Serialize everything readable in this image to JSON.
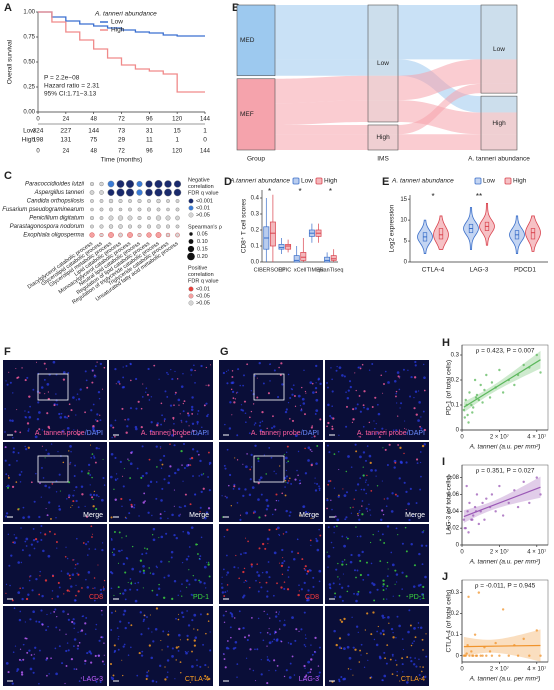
{
  "panel_labels": [
    "A",
    "B",
    "C",
    "D",
    "E",
    "F",
    "G",
    "H",
    "I",
    "J"
  ],
  "chart_data": [
    {
      "type": "survival",
      "ylabel": "Overall survival",
      "xlabel": "Time (months)",
      "xlim": [
        0,
        144
      ],
      "ylim": [
        0,
        1
      ],
      "xticks": [
        0,
        24,
        48,
        72,
        96,
        120,
        144
      ],
      "yticks": [
        {
          "value": 0,
          "label": "0.00"
        },
        {
          "value": 0.25,
          "label": "0.25"
        },
        {
          "value": 0.5,
          "label": "0.50"
        },
        {
          "value": 0.75,
          "label": "0.75"
        },
        {
          "value": 1,
          "label": "1.00"
        }
      ],
      "legend_title": "A. tanneri abundance",
      "x": [
        0,
        12,
        24,
        36,
        48,
        60,
        72,
        84,
        96,
        108,
        120,
        144
      ],
      "series": [
        {
          "name": "Low",
          "color": "#3a6fd0",
          "values": [
            1,
            0.95,
            0.91,
            0.88,
            0.86,
            0.84,
            0.82,
            0.8,
            0.79,
            0.77,
            0.76,
            0.76
          ]
        },
        {
          "name": "High",
          "color": "#f08a8a",
          "values": [
            1,
            0.9,
            0.8,
            0.72,
            0.63,
            0.54,
            0.47,
            0.43,
            0.41,
            0.38,
            0.2,
            0.2
          ]
        }
      ],
      "annotations": [
        "P = 2.2e−08",
        "Hazard ratio = 2.31",
        "95% CI:1.71−3.13"
      ],
      "risk_table": [
        [
          324,
          227,
          144,
          73,
          31,
          15,
          1
        ],
        [
          198,
          131,
          75,
          29,
          11,
          1,
          0
        ]
      ]
    },
    {
      "type": "sankey",
      "columns": [
        {
          "name": "Group",
          "nodes": [
            "MED",
            "MEF"
          ],
          "colors": [
            "#9dc9ef",
            "#f5a3ac"
          ]
        },
        {
          "name": "IMS",
          "nodes": [
            "Low",
            "High"
          ]
        },
        {
          "name": "A. tanneri abundance",
          "nodes": [
            "Low",
            "High"
          ]
        }
      ],
      "flows": [
        {
          "path": [
            "MED",
            "Low",
            "Low"
          ],
          "value": 200
        },
        {
          "path": [
            "MED",
            "Low",
            "High"
          ],
          "value": 60
        },
        {
          "path": [
            "MEF",
            "Low",
            "Low"
          ],
          "value": 90
        },
        {
          "path": [
            "MEF",
            "Low",
            "High"
          ],
          "value": 80
        },
        {
          "path": [
            "MEF",
            "High",
            "Low"
          ],
          "value": 34
        },
        {
          "path": [
            "MEF",
            "High",
            "High"
          ],
          "value": 58
        }
      ]
    },
    {
      "type": "dot_matrix",
      "rows": [
        "Paracoccidioides lutzii",
        "Aspergillus tanneri",
        "Candida orthopsilosis",
        "Fusarium pseudograminearum",
        "Penicillium digitatum",
        "Parastagonospora nodorum",
        "Exophiala oligosperma"
      ],
      "columns": [
        "Diacylglycerol catabolic process",
        "Glycerolipid catabolic process",
        "Glycerolipid metabolic process",
        "Lipid catabolic process",
        "Monoacylglycerol catabolic process",
        "Neutral lipid catabolic process",
        "Regulation of lipid catabolic process",
        "Regulation of triglyceride catabolic process",
        "Triglyceride catabolic process",
        "Unsaturated fatty acid metabolic process"
      ],
      "rho": [
        [
          -0.06,
          -0.07,
          -0.15,
          -0.19,
          -0.2,
          -0.13,
          -0.17,
          -0.2,
          -0.18,
          -0.17
        ],
        [
          -0.08,
          -0.08,
          -0.16,
          -0.2,
          -0.2,
          -0.14,
          -0.18,
          -0.2,
          -0.19,
          -0.18
        ],
        [
          -0.05,
          -0.05,
          -0.07,
          -0.06,
          -0.05,
          -0.06,
          -0.05,
          -0.07,
          -0.05,
          -0.05
        ],
        [
          -0.04,
          -0.05,
          -0.05,
          -0.04,
          -0.05,
          -0.05,
          -0.06,
          -0.05,
          -0.04,
          -0.05
        ],
        [
          -0.06,
          -0.05,
          -0.09,
          -0.1,
          -0.09,
          -0.06,
          -0.05,
          -0.1,
          -0.09,
          -0.08
        ],
        [
          -0.05,
          -0.06,
          -0.07,
          -0.08,
          -0.06,
          -0.05,
          -0.06,
          -0.07,
          -0.06,
          -0.05
        ],
        [
          0.1,
          0.06,
          0.12,
          0.08,
          0.12,
          0.06,
          0.1,
          0.12,
          0.07,
          0.08
        ]
      ],
      "q": [
        [
          ">0.05",
          ">0.05",
          "<0.01",
          "<0.001",
          "<0.001",
          "<0.01",
          "<0.001",
          "<0.001",
          "<0.001",
          "<0.001"
        ],
        [
          ">0.05",
          ">0.05",
          "<0.001",
          "<0.001",
          "<0.001",
          "<0.01",
          "<0.001",
          "<0.001",
          "<0.001",
          "<0.001"
        ],
        [
          ">0.05",
          ">0.05",
          ">0.05",
          ">0.05",
          ">0.05",
          ">0.05",
          ">0.05",
          ">0.05",
          ">0.05",
          ">0.05"
        ],
        [
          ">0.05",
          ">0.05",
          ">0.05",
          ">0.05",
          ">0.05",
          ">0.05",
          ">0.05",
          ">0.05",
          ">0.05",
          ">0.05"
        ],
        [
          ">0.05",
          ">0.05",
          ">0.05",
          ">0.05",
          ">0.05",
          ">0.05",
          ">0.05",
          ">0.05",
          ">0.05",
          ">0.05"
        ],
        [
          ">0.05",
          ">0.05",
          ">0.05",
          ">0.05",
          ">0.05",
          ">0.05",
          ">0.05",
          ">0.05",
          ">0.05",
          ">0.05"
        ],
        [
          "<0.05",
          ">0.05",
          "<0.05",
          ">0.05",
          "<0.05",
          ">0.05",
          "<0.05",
          "<0.05",
          ">0.05",
          ">0.05"
        ]
      ],
      "legend": {
        "negative": {
          "title": [
            "Negative",
            "correlation",
            "FDR q value"
          ],
          "labels": [
            "<0.001",
            "<0.01",
            ">0.05"
          ],
          "colors": [
            "#1a2a6c",
            "#3a7bd5",
            "#d4d4d4"
          ]
        },
        "size": {
          "title": "Spearman's ρ",
          "values": [
            0.05,
            {
              "value": 0.1,
              "label": "0.10"
            },
            0.15,
            {
              "value": 0.2,
              "label": "0.20"
            }
          ]
        },
        "positive": {
          "title": [
            "Positive",
            "correlation",
            "FDR q value"
          ],
          "labels": [
            "<0.01",
            "<0.05",
            ">0.05"
          ],
          "colors": [
            "#e8413c",
            "#f4a0a0",
            "#d4d4d4"
          ]
        }
      }
    },
    {
      "type": "box",
      "title": "A.tanneri abundance",
      "ylabel": "CD8⁺ T cell scores",
      "categories": [
        "CIBERSORT",
        "EPIC",
        "xCell",
        "TIMER",
        "quanTIseq"
      ],
      "ylim": [
        0,
        0.45
      ],
      "yticks": [
        {
          "value": 0,
          "label": "0.0"
        },
        0.1,
        0.2,
        0.3,
        0.4
      ],
      "series": [
        {
          "name": "Low",
          "color": "#3b6fc9",
          "fill": "#b9cdef",
          "boxes": [
            [
              0,
              0.08,
              0.15,
              0.22,
              0.4
            ],
            [
              0.05,
              0.08,
              0.09,
              0.11,
              0.15
            ],
            [
              0,
              0,
              0.01,
              0.04,
              0.1
            ],
            [
              0.12,
              0.16,
              0.18,
              0.2,
              0.24
            ],
            [
              0,
              0,
              0.01,
              0.03,
              0.06
            ]
          ]
        },
        {
          "name": "High",
          "color": "#d9434e",
          "fill": "#f4b8bc",
          "boxes": [
            [
              0,
              0.1,
              0.18,
              0.25,
              0.42
            ],
            [
              0.06,
              0.08,
              0.1,
              0.11,
              0.14
            ],
            [
              0,
              0.01,
              0.03,
              0.06,
              0.15
            ],
            [
              0.12,
              0.16,
              0.18,
              0.2,
              0.24
            ],
            [
              0,
              0.01,
              0.02,
              0.04,
              0.08
            ]
          ]
        }
      ],
      "significance": [
        "*",
        null,
        "*",
        null,
        "*"
      ]
    },
    {
      "type": "violin",
      "title": "A. tanneri abundance",
      "ylabel": "Log2 expression",
      "categories": [
        "CTLA-4",
        "LAG-3",
        "PDCD1"
      ],
      "ylim": [
        0,
        16
      ],
      "yticks": [
        0,
        5,
        10,
        15
      ],
      "series": [
        {
          "name": "Low",
          "color": "#3b6fc9",
          "fill": "#c4d5f2",
          "boxes": [
            [
              2,
              5,
              6,
              7,
              10
            ],
            [
              3,
              7,
              8,
              9,
              13
            ],
            [
              2,
              5.5,
              6.5,
              7.5,
              11
            ]
          ]
        },
        {
          "name": "High",
          "color": "#d9434e",
          "fill": "#f6c1c5",
          "boxes": [
            [
              3,
              5.5,
              6.5,
              8,
              11
            ],
            [
              4,
              7.5,
              8.5,
              9.5,
              14
            ],
            [
              2.5,
              5.5,
              7,
              8,
              11
            ]
          ]
        }
      ],
      "significance": [
        "*",
        "**",
        null
      ]
    },
    {
      "type": "scatter",
      "annotation": "ρ = 0.423, P = 0.007",
      "ylabel": "PD-1 (of total cells)",
      "xlabel": "A. tanneri (a.u. per mm²)",
      "color": "#5cb85c",
      "xlim": [
        0,
        46000000
      ],
      "xticks": [
        0,
        {
          "value": 20000000,
          "label": "2 × 10⁷"
        },
        {
          "value": 40000000,
          "label": "4 × 10⁷"
        }
      ],
      "ylim": [
        0,
        0.34
      ],
      "yticks": [
        0,
        0.1,
        0.2,
        0.3
      ],
      "x": [
        1000000.0,
        2000000.0,
        3000000.0,
        4000000.0,
        5000000.0,
        6000000.0,
        7000000.0,
        8000000.0,
        9000000.0,
        10000000.0,
        11000000.0,
        12000000.0,
        13000000.0,
        15000000.0,
        16000000.0,
        18000000.0,
        20000000.0,
        22000000.0,
        25000000.0,
        28000000.0,
        30000000.0,
        33000000.0,
        36000000.0,
        40000000.0,
        42000000.0,
        1500000.0,
        3500000.0,
        5500000.0,
        2500000.0,
        7500000.0
      ],
      "values": [
        0.08,
        0.12,
        0.06,
        0.15,
        0.1,
        0.09,
        0.2,
        0.14,
        0.12,
        0.18,
        0.11,
        0.16,
        0.22,
        0.13,
        0.19,
        0.17,
        0.24,
        0.15,
        0.2,
        0.18,
        0.22,
        0.26,
        0.25,
        0.3,
        0.23,
        0.05,
        0.03,
        0.07,
        0.1,
        0.13
      ]
    },
    {
      "type": "scatter",
      "annotation": "ρ = 0.351, P = 0.027",
      "ylabel": "LAG-3 (of total cells)",
      "xlabel": "A. tanneri (a.u. per mm²)",
      "color": "#9b59b6",
      "xlim": [
        0,
        46000000
      ],
      "xticks": [
        0,
        {
          "value": 20000000,
          "label": "2 × 10⁷"
        },
        {
          "value": 40000000,
          "label": "4 × 10⁷"
        }
      ],
      "ylim": [
        0,
        0.095
      ],
      "yticks": [
        0,
        0.02,
        0.04,
        0.06,
        0.08
      ],
      "x": [
        1000000.0,
        2000000.0,
        3000000.0,
        4000000.0,
        5000000.0,
        6000000.0,
        7000000.0,
        8000000.0,
        9000000.0,
        10000000.0,
        11000000.0,
        12000000.0,
        13000000.0,
        15000000.0,
        16000000.0,
        18000000.0,
        20000000.0,
        22000000.0,
        25000000.0,
        28000000.0,
        30000000.0,
        33000000.0,
        36000000.0,
        40000000.0,
        42000000.0,
        1500000.0,
        3500000.0,
        5500000.0,
        2500000.0,
        7500000.0
      ],
      "values": [
        0.03,
        0.02,
        0.04,
        0.05,
        0.03,
        0.035,
        0.045,
        0.06,
        0.025,
        0.04,
        0.05,
        0.03,
        0.055,
        0.045,
        0.06,
        0.04,
        0.07,
        0.035,
        0.05,
        0.065,
        0.045,
        0.075,
        0.05,
        0.08,
        0.06,
        0.02,
        0.015,
        0.03,
        0.07,
        0.04
      ]
    },
    {
      "type": "scatter",
      "annotation": "ρ = -0.011, P = 0.945",
      "ylabel": "CTLA-4 (of total cells)",
      "xlabel": "A. tanneri (a.u. per mm²)",
      "color": "#f0932b",
      "xlim": [
        0,
        46000000
      ],
      "xticks": [
        0,
        {
          "value": 20000000,
          "label": "2 × 10⁷"
        },
        {
          "value": 40000000,
          "label": "4 × 10⁷"
        }
      ],
      "ylim": [
        -0.03,
        0.36
      ],
      "yticks": [
        0,
        0.1,
        0.2,
        0.3
      ],
      "x": [
        1000000.0,
        2000000.0,
        3000000.0,
        4000000.0,
        5000000.0,
        6000000.0,
        7000000.0,
        8000000.0,
        9000000.0,
        10000000.0,
        11000000.0,
        12000000.0,
        13000000.0,
        15000000.0,
        16000000.0,
        18000000.0,
        20000000.0,
        22000000.0,
        25000000.0,
        28000000.0,
        30000000.0,
        33000000.0,
        36000000.0,
        40000000.0,
        42000000.0,
        1500000.0,
        3500000.0,
        5500000.0,
        2500000.0,
        7500000.0
      ],
      "values": [
        0,
        0,
        0.05,
        0,
        0.02,
        0,
        0.1,
        0,
        0.3,
        0,
        0,
        0.04,
        0,
        0.02,
        0,
        0.06,
        0,
        0.22,
        0,
        0.05,
        0,
        0.08,
        0,
        0.12,
        0,
        0,
        0.28,
        0,
        0.01,
        0
      ]
    }
  ],
  "microscopy": [
    {
      "cells": [
        {
          "label": [
            {
              "text": "A. tanneri probe",
              "color": "#ff5fa0"
            },
            {
              "text": "/DAPI",
              "color": "#6b8bff"
            }
          ]
        },
        {
          "label": [
            {
              "text": "A. tanneri probe",
              "color": "#ff5fa0"
            },
            {
              "text": "/DAPI",
              "color": "#6b8bff"
            }
          ]
        },
        {
          "label": [
            {
              "text": "Merge",
              "color": "#ffffff"
            }
          ]
        },
        {
          "label": [
            {
              "text": "Merge",
              "color": "#ffffff"
            }
          ]
        },
        {
          "label": [
            {
              "text": "CD8",
              "color": "#ff3b3b"
            }
          ]
        },
        {
          "label": [
            {
              "text": "PD-1",
              "color": "#3ddc3d"
            }
          ]
        },
        {
          "label": [
            {
              "text": "LAG-3",
              "color": "#c060ff"
            }
          ]
        },
        {
          "label": [
            {
              "text": "CTLA-4",
              "color": "#ffa020"
            }
          ]
        }
      ]
    },
    {
      "cells": [
        {
          "label": [
            {
              "text": "A. tanneri probe",
              "color": "#ff5fa0"
            },
            {
              "text": "/DAPI",
              "color": "#6b8bff"
            }
          ]
        },
        {
          "label": [
            {
              "text": "A. tanneri probe",
              "color": "#ff5fa0"
            },
            {
              "text": "/DAPI",
              "color": "#6b8bff"
            }
          ]
        },
        {
          "label": [
            {
              "text": "Merge",
              "color": "#ffffff"
            }
          ]
        },
        {
          "label": [
            {
              "text": "Merge",
              "color": "#ffffff"
            }
          ]
        },
        {
          "label": [
            {
              "text": "CD8",
              "color": "#ff3b3b"
            }
          ]
        },
        {
          "label": [
            {
              "text": "PD-1",
              "color": "#3ddc3d"
            }
          ]
        },
        {
          "label": [
            {
              "text": "LAG-3",
              "color": "#c060ff"
            }
          ]
        },
        {
          "label": [
            {
              "text": "CTLA-4",
              "color": "#ffa020"
            }
          ]
        }
      ]
    }
  ]
}
